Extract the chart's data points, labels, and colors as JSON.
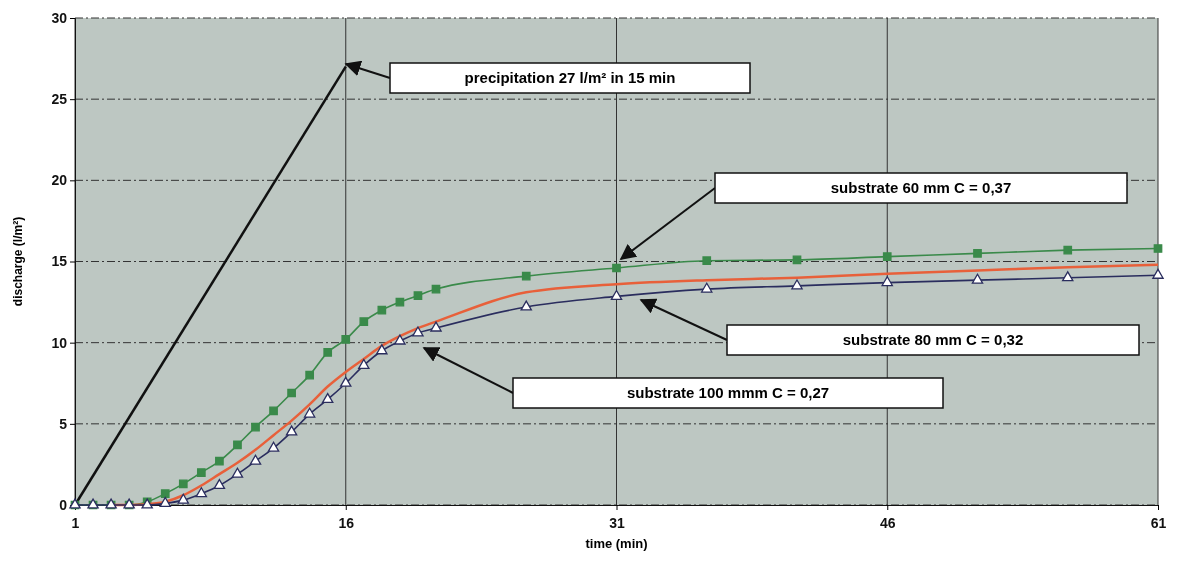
{
  "chart_data": {
    "type": "line",
    "xlabel": "time (min)",
    "ylabel": "discharge (l/m²)",
    "xlim": [
      1,
      61
    ],
    "xticks": [
      1,
      16,
      31,
      46,
      61
    ],
    "ylim": [
      0,
      30
    ],
    "yticks": [
      0,
      5,
      10,
      15,
      20,
      25,
      30
    ],
    "grid": true,
    "series": [
      {
        "color": "#111111",
        "marker": "none",
        "x": [
          1,
          16
        ],
        "values": [
          0,
          27
        ]
      },
      {
        "color": "#3a8a4a",
        "marker": "square",
        "x": [
          1,
          2,
          3,
          4,
          5,
          6,
          7,
          8,
          9,
          10,
          11,
          12,
          13,
          14,
          15,
          16,
          17,
          18,
          19,
          20,
          21,
          26,
          31,
          36,
          41,
          46,
          51,
          56,
          61
        ],
        "values": [
          0,
          0,
          0,
          0,
          0.2,
          0.7,
          1.3,
          2.0,
          2.7,
          3.7,
          4.8,
          5.8,
          6.9,
          8.0,
          9.4,
          10.2,
          11.3,
          12.0,
          12.5,
          12.9,
          13.3,
          14.1,
          14.6,
          15.05,
          15.1,
          15.3,
          15.5,
          15.7,
          15.8
        ]
      },
      {
        "color": "#e8603a",
        "marker": "none",
        "x": [
          3,
          4,
          5,
          6,
          7,
          8,
          9,
          10,
          11,
          12,
          13,
          14,
          15,
          16,
          17,
          18,
          19,
          20,
          21,
          26,
          31,
          36,
          41,
          46,
          51,
          56,
          61
        ],
        "values": [
          0,
          0,
          0.05,
          0.2,
          0.6,
          1.2,
          1.9,
          2.6,
          3.4,
          4.3,
          5.2,
          6.2,
          7.3,
          8.2,
          9.0,
          9.8,
          10.4,
          10.9,
          11.3,
          13.1,
          13.6,
          13.85,
          14.0,
          14.25,
          14.45,
          14.65,
          14.8
        ]
      },
      {
        "color": "#2a2d5e",
        "marker": "triangle",
        "x": [
          1,
          2,
          3,
          4,
          5,
          6,
          7,
          8,
          9,
          10,
          11,
          12,
          13,
          14,
          15,
          16,
          17,
          18,
          19,
          20,
          21,
          26,
          31,
          36,
          41,
          46,
          51,
          56,
          61
        ],
        "values": [
          0,
          0,
          0,
          0,
          0,
          0.1,
          0.3,
          0.7,
          1.2,
          1.9,
          2.7,
          3.5,
          4.5,
          5.6,
          6.5,
          7.5,
          8.6,
          9.5,
          10.1,
          10.6,
          10.9,
          12.2,
          12.85,
          13.3,
          13.5,
          13.7,
          13.85,
          14.0,
          14.15
        ]
      }
    ],
    "annotations": [
      "precipitation 27 l/m² in 15 min",
      "substrate 60 mm C = 0,37",
      "substrate 80 mm C = 0,32",
      "substrate 100 mmm C = 0,27"
    ]
  }
}
